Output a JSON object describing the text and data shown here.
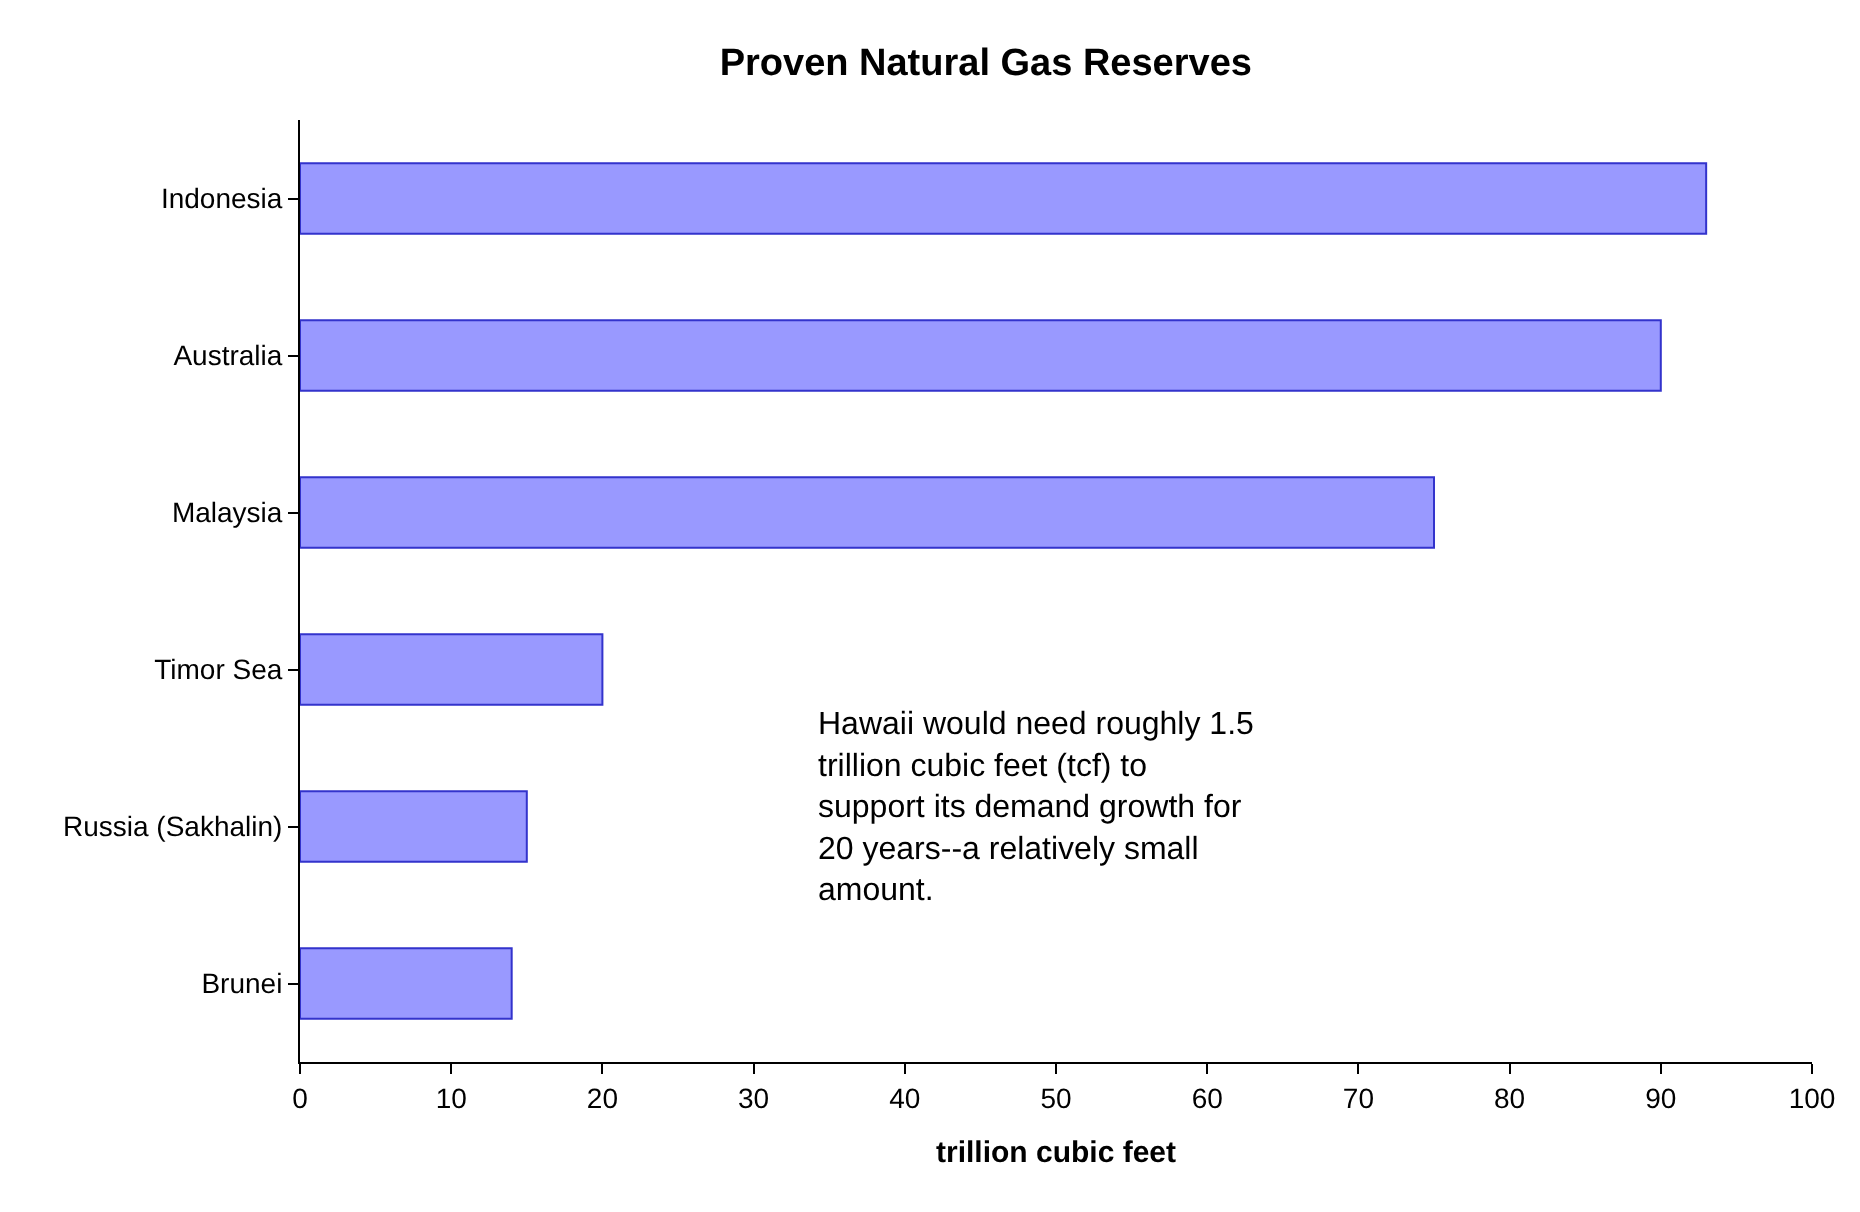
{
  "chart_data": {
    "type": "bar",
    "orientation": "horizontal",
    "title": "Proven Natural Gas Reserves",
    "xlabel": "trillion cubic feet",
    "categories": [
      "Indonesia",
      "Australia",
      "Malaysia",
      "Timor Sea",
      "Russia (Sakhalin)",
      "Brunei"
    ],
    "values": [
      93,
      90,
      75,
      20,
      15,
      14
    ],
    "color": "#9999ff",
    "xlim": [
      0,
      100
    ],
    "xticks": [
      0,
      10,
      20,
      30,
      40,
      50,
      60,
      70,
      80,
      90,
      100
    ],
    "grid": false,
    "annotations": [
      "Hawaii would need roughly 1.5 trillion cubic feet (tcf) to support its demand growth for 20 years--a relatively small amount."
    ]
  }
}
